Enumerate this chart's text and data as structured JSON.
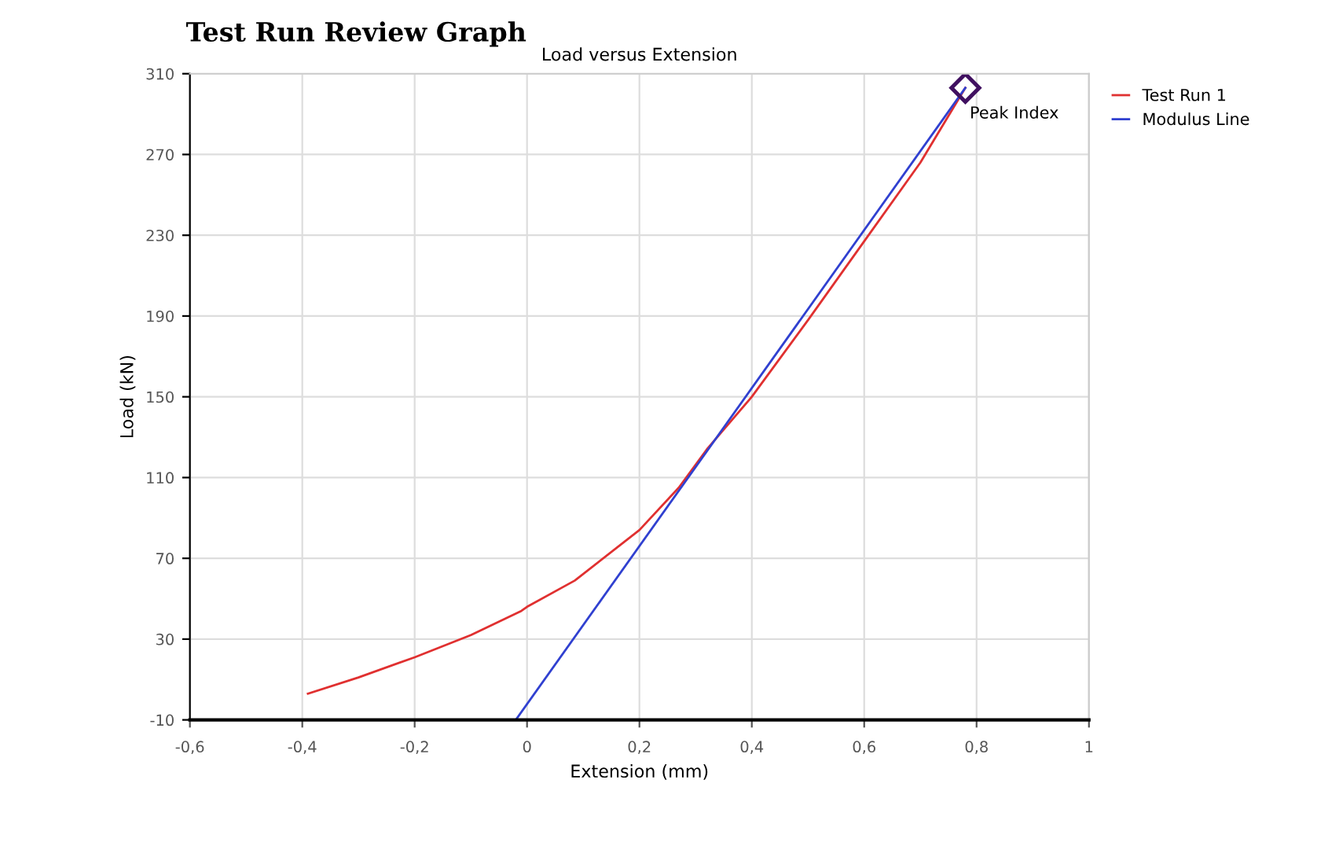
{
  "chart_data": {
    "type": "line",
    "title": "Test Run Review Graph",
    "subtitle": "Load versus Extension",
    "xlabel": "Extension (mm)",
    "ylabel": "Load (kN)",
    "series": [
      {
        "name": "Test Run 1",
        "color": "#e03030",
        "x": [
          -0.39,
          -0.3,
          -0.2,
          -0.1,
          -0.01,
          0.0,
          0.085,
          0.2,
          0.27,
          0.32,
          0.4,
          0.5,
          0.6,
          0.7,
          0.78
        ],
        "values": [
          3,
          11,
          21,
          32,
          44,
          46,
          59,
          84,
          105,
          124,
          150,
          188,
          227,
          266,
          303
        ]
      },
      {
        "name": "Modulus Line",
        "color": "#3040d0",
        "x": [
          -0.02,
          0.78
        ],
        "values": [
          -10,
          303
        ]
      }
    ],
    "annotations": [
      {
        "text": "Peak Index",
        "x": 0.78,
        "y": 303
      }
    ],
    "xlim": [
      -0.6,
      1
    ],
    "ylim": [
      -10,
      310
    ],
    "xticks": [
      {
        "value": -0.6,
        "label": "-0,6"
      },
      {
        "value": -0.4,
        "label": "-0,4"
      },
      {
        "value": -0.2,
        "label": "-0,2"
      },
      0,
      {
        "value": 0.2,
        "label": "0,2"
      },
      {
        "value": 0.4,
        "label": "0,4"
      },
      {
        "value": 0.6,
        "label": "0,6"
      },
      {
        "value": 0.8,
        "label": "0,8"
      },
      1
    ],
    "yticks": [
      -10,
      30,
      70,
      110,
      150,
      190,
      230,
      270,
      310
    ],
    "grid": true,
    "legend": "right",
    "marker": "none",
    "line_style": "solid"
  }
}
